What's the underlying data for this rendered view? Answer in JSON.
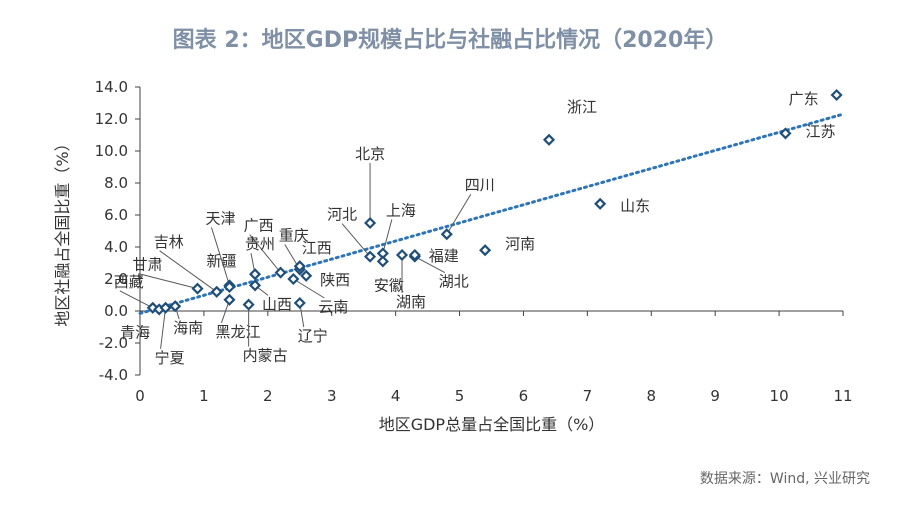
{
  "page": {
    "title": "图表 2：地区GDP规模占比与社融占比情况（2020年）",
    "source_note": "数据来源：Wind, 兴业研究"
  },
  "colors": {
    "marker": "#1f4e79",
    "trendline": "#2e75b6",
    "axis": "#404040",
    "title": "#7f8fa6",
    "leader": "#595959"
  },
  "chart_data": {
    "type": "scatter",
    "title": "图表 2：地区GDP规模占比与社融占比情况（2020年）",
    "xlabel": "地区GDP总量占全国比重（%）",
    "ylabel": "地区社融占全国比重（%）",
    "xlim": [
      0,
      11
    ],
    "ylim": [
      -4,
      14
    ],
    "x_ticks": [
      "0",
      "1",
      "2",
      "3",
      "4",
      "5",
      "6",
      "7",
      "8",
      "9",
      "10",
      "11"
    ],
    "y_ticks": [
      "-4.0",
      "-2.0",
      "0.0",
      "2.0",
      "4.0",
      "6.0",
      "8.0",
      "10.0",
      "12.0",
      "14.0"
    ],
    "grid": false,
    "trendline": {
      "style": "dotted",
      "x": [
        0,
        11
      ],
      "y": [
        -0.15,
        12.3
      ]
    },
    "points": [
      {
        "label": "广东",
        "x": 10.9,
        "y": 13.5
      },
      {
        "label": "江苏",
        "x": 10.1,
        "y": 11.1
      },
      {
        "label": "浙江",
        "x": 6.4,
        "y": 10.7
      },
      {
        "label": "山东",
        "x": 7.2,
        "y": 6.7
      },
      {
        "label": "四川",
        "x": 4.8,
        "y": 4.8
      },
      {
        "label": "河南",
        "x": 5.4,
        "y": 3.8
      },
      {
        "label": "北京",
        "x": 3.6,
        "y": 5.5
      },
      {
        "label": "上海",
        "x": 3.8,
        "y": 3.6
      },
      {
        "label": "河北",
        "x": 3.6,
        "y": 3.4
      },
      {
        "label": "安徽",
        "x": 3.8,
        "y": 3.1
      },
      {
        "label": "湖北",
        "x": 4.3,
        "y": 3.4
      },
      {
        "label": "湖南",
        "x": 4.1,
        "y": 3.5
      },
      {
        "label": "福建",
        "x": 4.3,
        "y": 3.5
      },
      {
        "label": "重庆",
        "x": 2.5,
        "y": 2.6
      },
      {
        "label": "广西",
        "x": 2.2,
        "y": 2.4
      },
      {
        "label": "江西",
        "x": 2.5,
        "y": 2.8
      },
      {
        "label": "陕西",
        "x": 2.6,
        "y": 2.2
      },
      {
        "label": "贵州",
        "x": 1.8,
        "y": 2.3
      },
      {
        "label": "云南",
        "x": 2.4,
        "y": 2.0
      },
      {
        "label": "天津",
        "x": 1.4,
        "y": 1.6
      },
      {
        "label": "新疆",
        "x": 1.4,
        "y": 1.5
      },
      {
        "label": "吉林",
        "x": 1.2,
        "y": 1.2
      },
      {
        "label": "山西",
        "x": 1.8,
        "y": 1.6
      },
      {
        "label": "辽宁",
        "x": 2.5,
        "y": 0.5
      },
      {
        "label": "甘肃",
        "x": 0.9,
        "y": 1.4
      },
      {
        "label": "黑龙江",
        "x": 1.4,
        "y": 0.7
      },
      {
        "label": "内蒙古",
        "x": 1.7,
        "y": 0.4
      },
      {
        "label": "西藏",
        "x": 0.2,
        "y": 0.2
      },
      {
        "label": "青海",
        "x": 0.3,
        "y": 0.1
      },
      {
        "label": "宁夏",
        "x": 0.4,
        "y": 0.2
      },
      {
        "label": "海南",
        "x": 0.55,
        "y": 0.3
      }
    ]
  }
}
